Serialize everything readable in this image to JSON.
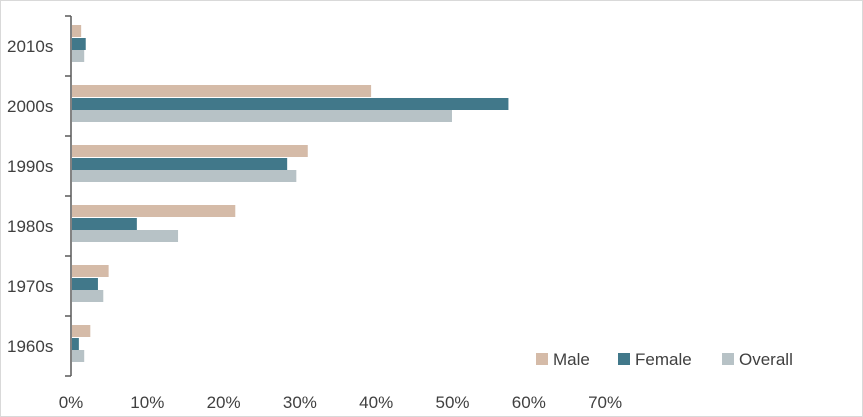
{
  "chart_data": {
    "type": "bar",
    "orientation": "horizontal",
    "categories": [
      "1960s",
      "1970s",
      "1980s",
      "1990s",
      "2000s",
      "2010s"
    ],
    "series": [
      {
        "name": "Male",
        "values": [
          2.4,
          4.8,
          21.4,
          30.9,
          39.2,
          1.2
        ],
        "color": "#d5bba8"
      },
      {
        "name": "Female",
        "values": [
          0.9,
          3.4,
          8.5,
          28.2,
          57.2,
          1.8
        ],
        "color": "#41788a"
      },
      {
        "name": "Overall",
        "values": [
          1.6,
          4.1,
          13.9,
          29.4,
          49.8,
          1.6
        ],
        "color": "#b7c2c6"
      }
    ],
    "xlim": [
      0,
      70
    ],
    "x_ticks": [
      "0%",
      "10%",
      "20%",
      "30%",
      "40%",
      "50%",
      "60%",
      "70%"
    ],
    "grid": false,
    "legend_position": "bottom-right",
    "title": "",
    "xlabel": "",
    "ylabel": ""
  }
}
